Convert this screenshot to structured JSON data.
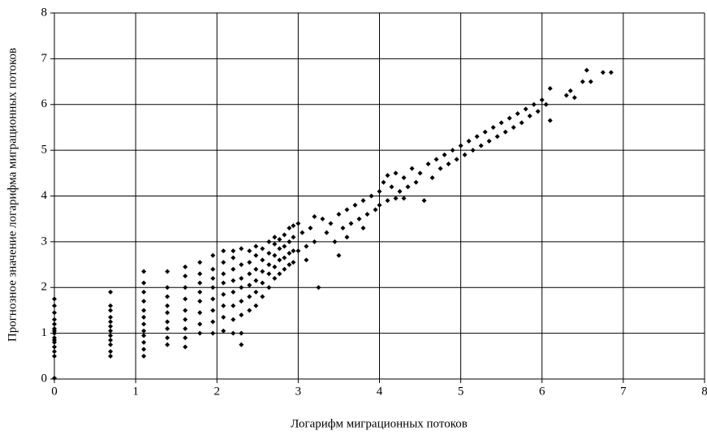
{
  "chart_data": {
    "type": "scatter",
    "y_label": "Прогнозное значение логарифма миграционных потоков",
    "x_label": "Логарифм миграционных потоков",
    "xlim": [
      0,
      8
    ],
    "ylim": [
      0,
      8
    ],
    "xticks": [
      0,
      1,
      2,
      3,
      4,
      5,
      6,
      7,
      8
    ],
    "yticks": [
      0,
      1,
      2,
      3,
      4,
      5,
      6,
      7,
      8
    ],
    "grid": true,
    "series": [
      {
        "color": "#000000",
        "x": [
          0,
          0,
          0,
          0,
          0,
          0,
          0,
          0,
          0,
          0,
          0,
          0,
          0,
          0,
          0,
          0.69,
          0.69,
          0.69,
          0.69,
          0.69,
          0.69,
          0.69,
          0.69,
          0.69,
          0.69,
          0.69,
          0.69,
          1.1,
          1.1,
          1.1,
          1.1,
          1.1,
          1.1,
          1.1,
          1.1,
          1.1,
          1.1,
          1.1,
          1.1,
          1.39,
          1.39,
          1.39,
          1.39,
          1.39,
          1.39,
          1.39,
          1.39,
          1.39,
          1.61,
          1.61,
          1.61,
          1.61,
          1.61,
          1.61,
          1.61,
          1.61,
          1.61,
          1.79,
          1.79,
          1.79,
          1.79,
          1.79,
          1.79,
          1.79,
          1.79,
          1.95,
          1.95,
          1.95,
          1.95,
          1.95,
          1.95,
          1.95,
          1.95,
          2.08,
          2.08,
          2.08,
          2.08,
          2.08,
          2.08,
          2.08,
          2.08,
          2.2,
          2.2,
          2.2,
          2.2,
          2.2,
          2.2,
          2.2,
          2.2,
          2.3,
          2.3,
          2.3,
          2.3,
          2.3,
          2.3,
          2.3,
          2.3,
          2.4,
          2.4,
          2.4,
          2.4,
          2.4,
          2.4,
          2.48,
          2.48,
          2.48,
          2.48,
          2.48,
          2.48,
          2.56,
          2.56,
          2.56,
          2.56,
          2.56,
          2.64,
          2.64,
          2.64,
          2.64,
          2.64,
          2.71,
          2.71,
          2.71,
          2.71,
          2.71,
          2.77,
          2.77,
          2.77,
          2.77,
          2.83,
          2.83,
          2.83,
          2.83,
          2.89,
          2.89,
          2.89,
          2.89,
          2.94,
          2.94,
          2.94,
          2.94,
          3.0,
          3.05,
          3.1,
          3.15,
          3.2,
          3.25,
          3.3,
          3.35,
          3.4,
          3.45,
          3.5,
          3.55,
          3.6,
          3.65,
          3.7,
          3.75,
          3.8,
          3.85,
          3.9,
          3.95,
          4.0,
          4.0,
          4.05,
          4.1,
          4.15,
          4.2,
          4.2,
          4.25,
          4.3,
          4.35,
          4.4,
          4.45,
          4.5,
          4.55,
          4.6,
          4.65,
          4.7,
          4.75,
          4.8,
          4.85,
          4.9,
          4.95,
          5.0,
          5.05,
          5.1,
          5.15,
          5.2,
          5.25,
          5.3,
          5.35,
          5.4,
          5.45,
          5.5,
          5.55,
          5.6,
          5.65,
          5.7,
          5.75,
          5.8,
          5.85,
          5.9,
          5.95,
          6.0,
          6.05,
          6.1,
          6.1,
          6.3,
          6.35,
          6.4,
          6.5,
          6.55,
          6.6,
          6.75,
          6.85,
          3.5,
          3.8,
          4.3,
          4.1,
          3.6,
          3.2,
          3.0,
          3.1
        ],
        "y": [
          0.02,
          0.5,
          0.6,
          0.7,
          0.8,
          0.85,
          0.9,
          1.0,
          1.05,
          1.1,
          1.2,
          1.3,
          1.45,
          1.6,
          1.75,
          0.5,
          0.6,
          0.75,
          0.85,
          0.95,
          1.05,
          1.15,
          1.25,
          1.35,
          1.5,
          1.6,
          1.9,
          0.5,
          0.65,
          0.8,
          0.95,
          1.05,
          1.2,
          1.35,
          1.5,
          1.7,
          1.9,
          2.1,
          2.35,
          0.75,
          0.9,
          1.1,
          1.25,
          1.45,
          1.6,
          1.8,
          2.0,
          2.35,
          0.7,
          0.9,
          1.1,
          1.3,
          1.5,
          1.75,
          2.0,
          2.25,
          2.45,
          1.0,
          1.2,
          1.45,
          1.7,
          1.9,
          2.1,
          2.3,
          2.55,
          1.0,
          1.25,
          1.5,
          1.75,
          2.0,
          2.2,
          2.4,
          2.7,
          1.05,
          1.35,
          1.6,
          1.85,
          2.1,
          2.3,
          2.55,
          2.8,
          1.0,
          1.3,
          1.6,
          1.9,
          2.15,
          2.4,
          2.65,
          2.8,
          0.75,
          1.0,
          1.4,
          1.7,
          2.0,
          2.2,
          2.5,
          2.85,
          1.5,
          1.8,
          2.05,
          2.3,
          2.55,
          2.8,
          1.6,
          1.9,
          2.15,
          2.4,
          2.7,
          2.9,
          1.8,
          2.1,
          2.35,
          2.6,
          2.85,
          2.0,
          2.3,
          2.5,
          2.75,
          3.0,
          2.2,
          2.45,
          2.7,
          2.95,
          3.1,
          2.3,
          2.6,
          2.85,
          3.05,
          2.4,
          2.65,
          2.9,
          3.15,
          2.5,
          2.75,
          3.0,
          3.3,
          2.55,
          2.8,
          3.1,
          3.35,
          2.8,
          3.2,
          2.9,
          3.3,
          3.0,
          2.0,
          3.5,
          3.2,
          3.4,
          3.0,
          3.6,
          3.3,
          3.7,
          3.4,
          3.8,
          3.5,
          3.9,
          3.6,
          4.0,
          3.7,
          4.1,
          3.8,
          4.3,
          3.9,
          4.2,
          4.5,
          3.95,
          4.1,
          4.4,
          4.2,
          4.6,
          4.3,
          4.5,
          3.9,
          4.7,
          4.4,
          4.8,
          4.6,
          4.9,
          4.7,
          5.0,
          4.8,
          5.1,
          4.9,
          5.2,
          5.0,
          5.3,
          5.1,
          5.4,
          5.2,
          5.5,
          5.3,
          5.6,
          5.4,
          5.7,
          5.5,
          5.8,
          5.6,
          5.9,
          5.75,
          6.0,
          5.85,
          6.1,
          6.0,
          6.35,
          5.65,
          6.2,
          6.3,
          6.15,
          6.5,
          6.75,
          6.5,
          6.7,
          6.7,
          2.7,
          3.3,
          3.95,
          4.45,
          3.1,
          3.55,
          3.4,
          2.6
        ]
      }
    ]
  }
}
